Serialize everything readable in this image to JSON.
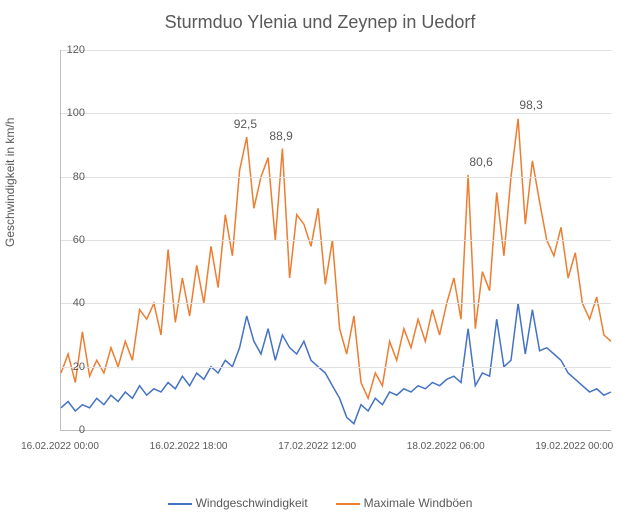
{
  "chart": {
    "type": "line",
    "title": "Sturmduo Ylenia und Zeynep in Uedorf",
    "title_fontsize": 18,
    "ylabel": "Geschwindigkeit in km/h",
    "label_fontsize": 12,
    "background_color": "#ffffff",
    "grid_color": "#e0e0e0",
    "axis_color": "#bfbfbf",
    "text_color": "#595959",
    "ylim": [
      0,
      120
    ],
    "ytick_step": 20,
    "yticks": [
      0,
      20,
      40,
      60,
      80,
      100,
      120
    ],
    "xlim_index": [
      0,
      77
    ],
    "xticks": [
      {
        "pos": 0,
        "label": "16.02.2022 00:00"
      },
      {
        "pos": 18,
        "label": "16.02.2022 18:00"
      },
      {
        "pos": 36,
        "label": "17.02.2022 12:00"
      },
      {
        "pos": 54,
        "label": "18.02.2022 06:00"
      },
      {
        "pos": 72,
        "label": "19.02.2022 00:00"
      }
    ],
    "annotations": [
      {
        "text": "92,5",
        "x_idx": 26,
        "y_val": 99
      },
      {
        "text": "88,9",
        "x_idx": 31,
        "y_val": 95
      },
      {
        "text": "80,6",
        "x_idx": 59,
        "y_val": 87
      },
      {
        "text": "98,3",
        "x_idx": 66,
        "y_val": 105
      }
    ],
    "series": [
      {
        "name": "Windgeschwindigkeit",
        "color": "#4472c4",
        "line_width": 1.5,
        "data": [
          7,
          9,
          6,
          8,
          7,
          10,
          8,
          11,
          9,
          12,
          10,
          14,
          11,
          13,
          12,
          15,
          13,
          17,
          14,
          18,
          16,
          20,
          18,
          22,
          20,
          26,
          36,
          28,
          24,
          32,
          22,
          30,
          26,
          24,
          28,
          22,
          20,
          18,
          14,
          10,
          4,
          2,
          8,
          6,
          10,
          8,
          12,
          11,
          13,
          12,
          14,
          13,
          15,
          14,
          16,
          17,
          15,
          32,
          14,
          18,
          17,
          35,
          20,
          22,
          40,
          24,
          38,
          25,
          26,
          24,
          22,
          18,
          16,
          14,
          12,
          13,
          11,
          12
        ]
      },
      {
        "name": "Maximale Windböen",
        "color": "#ed7d31",
        "line_width": 1.5,
        "data": [
          18,
          24,
          15,
          31,
          17,
          22,
          18,
          26,
          20,
          28,
          22,
          38,
          35,
          40,
          30,
          57,
          34,
          48,
          36,
          52,
          40,
          58,
          45,
          68,
          55,
          82,
          92.5,
          70,
          80,
          86,
          60,
          88.9,
          48,
          68,
          65,
          58,
          70,
          46,
          60,
          32,
          24,
          36,
          15,
          10,
          18,
          14,
          28,
          22,
          32,
          26,
          35,
          28,
          38,
          30,
          40,
          48,
          35,
          80.6,
          32,
          50,
          44,
          75,
          55,
          80,
          98.3,
          65,
          85,
          72,
          60,
          55,
          64,
          48,
          56,
          40,
          35,
          42,
          30,
          28
        ]
      }
    ],
    "legend_items": [
      {
        "label": "Windgeschwindigkeit",
        "color": "#4472c4"
      },
      {
        "label": "Maximale Windböen",
        "color": "#ed7d31"
      }
    ]
  }
}
